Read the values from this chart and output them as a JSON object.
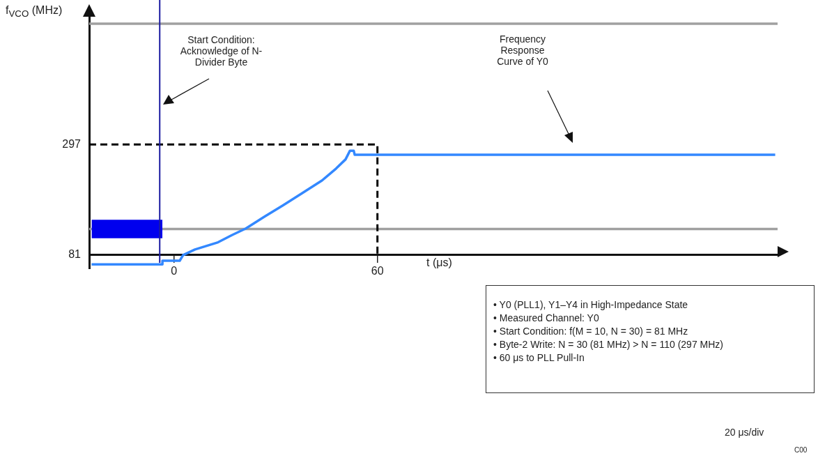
{
  "chart_data": {
    "type": "line",
    "xlabel": "t (μs)",
    "ylabel": "f$_{VCO}$ (MHz)",
    "xlim": [
      -25,
      178
    ],
    "ylim": [
      55,
      550
    ],
    "xticks": [
      0,
      60
    ],
    "yticks": [
      81,
      297
    ],
    "ref_lines": [
      {
        "axis": "x",
        "value": -4.2,
        "color": "#1a1aa0"
      }
    ],
    "series": [
      {
        "color": "#a0a0a0",
        "x": [
          -25,
          178
        ],
        "values": [
          533,
          533
        ]
      },
      {
        "color": "#a0a0a0",
        "x": [
          -25,
          178
        ],
        "values": [
          132,
          132
        ]
      },
      {
        "color": "#0000ee",
        "x": [
          -24.3,
          -3.4
        ],
        "values": [
          null,
          null
        ],
        "lower": [
          114,
          114
        ],
        "upper": [
          150,
          150
        ]
      },
      {
        "color": "#3388ff",
        "x": [
          -24.3,
          -3.4,
          -3.4,
          1.7,
          2.7,
          6.2,
          13,
          17.1,
          21.2,
          26.7,
          32.1,
          37.6,
          43.7,
          47.8,
          50.6,
          51.9,
          53,
          53.3,
          177.3
        ],
        "values": [
          63,
          63,
          70,
          70,
          81,
          92,
          106,
          120,
          133,
          156,
          178,
          201,
          227,
          250,
          268,
          285,
          285,
          277,
          277
        ]
      },
      {
        "color": "#000000",
        "line_style": "dashed",
        "x": [
          -25,
          60,
          60
        ],
        "values": [
          297,
          297,
          81
        ]
      }
    ],
    "annotations": [
      "Start Condition: Acknowledge of N-Divider Byte",
      "Frequency Response Curve of Y0",
      "• Y0 (PLL1), Y1–Y4 in High-Impedance State",
      "• Measured Channel: Y0",
      "• Start Condition: f(M = 10, N = 30) = 81 MHz",
      "• Byte-2 Write: N = 30 (81 MHz) > N = 110 (297 MHz)",
      "• 60 μs to PLL Pull-In",
      "20 μs/div",
      "C00"
    ]
  }
}
